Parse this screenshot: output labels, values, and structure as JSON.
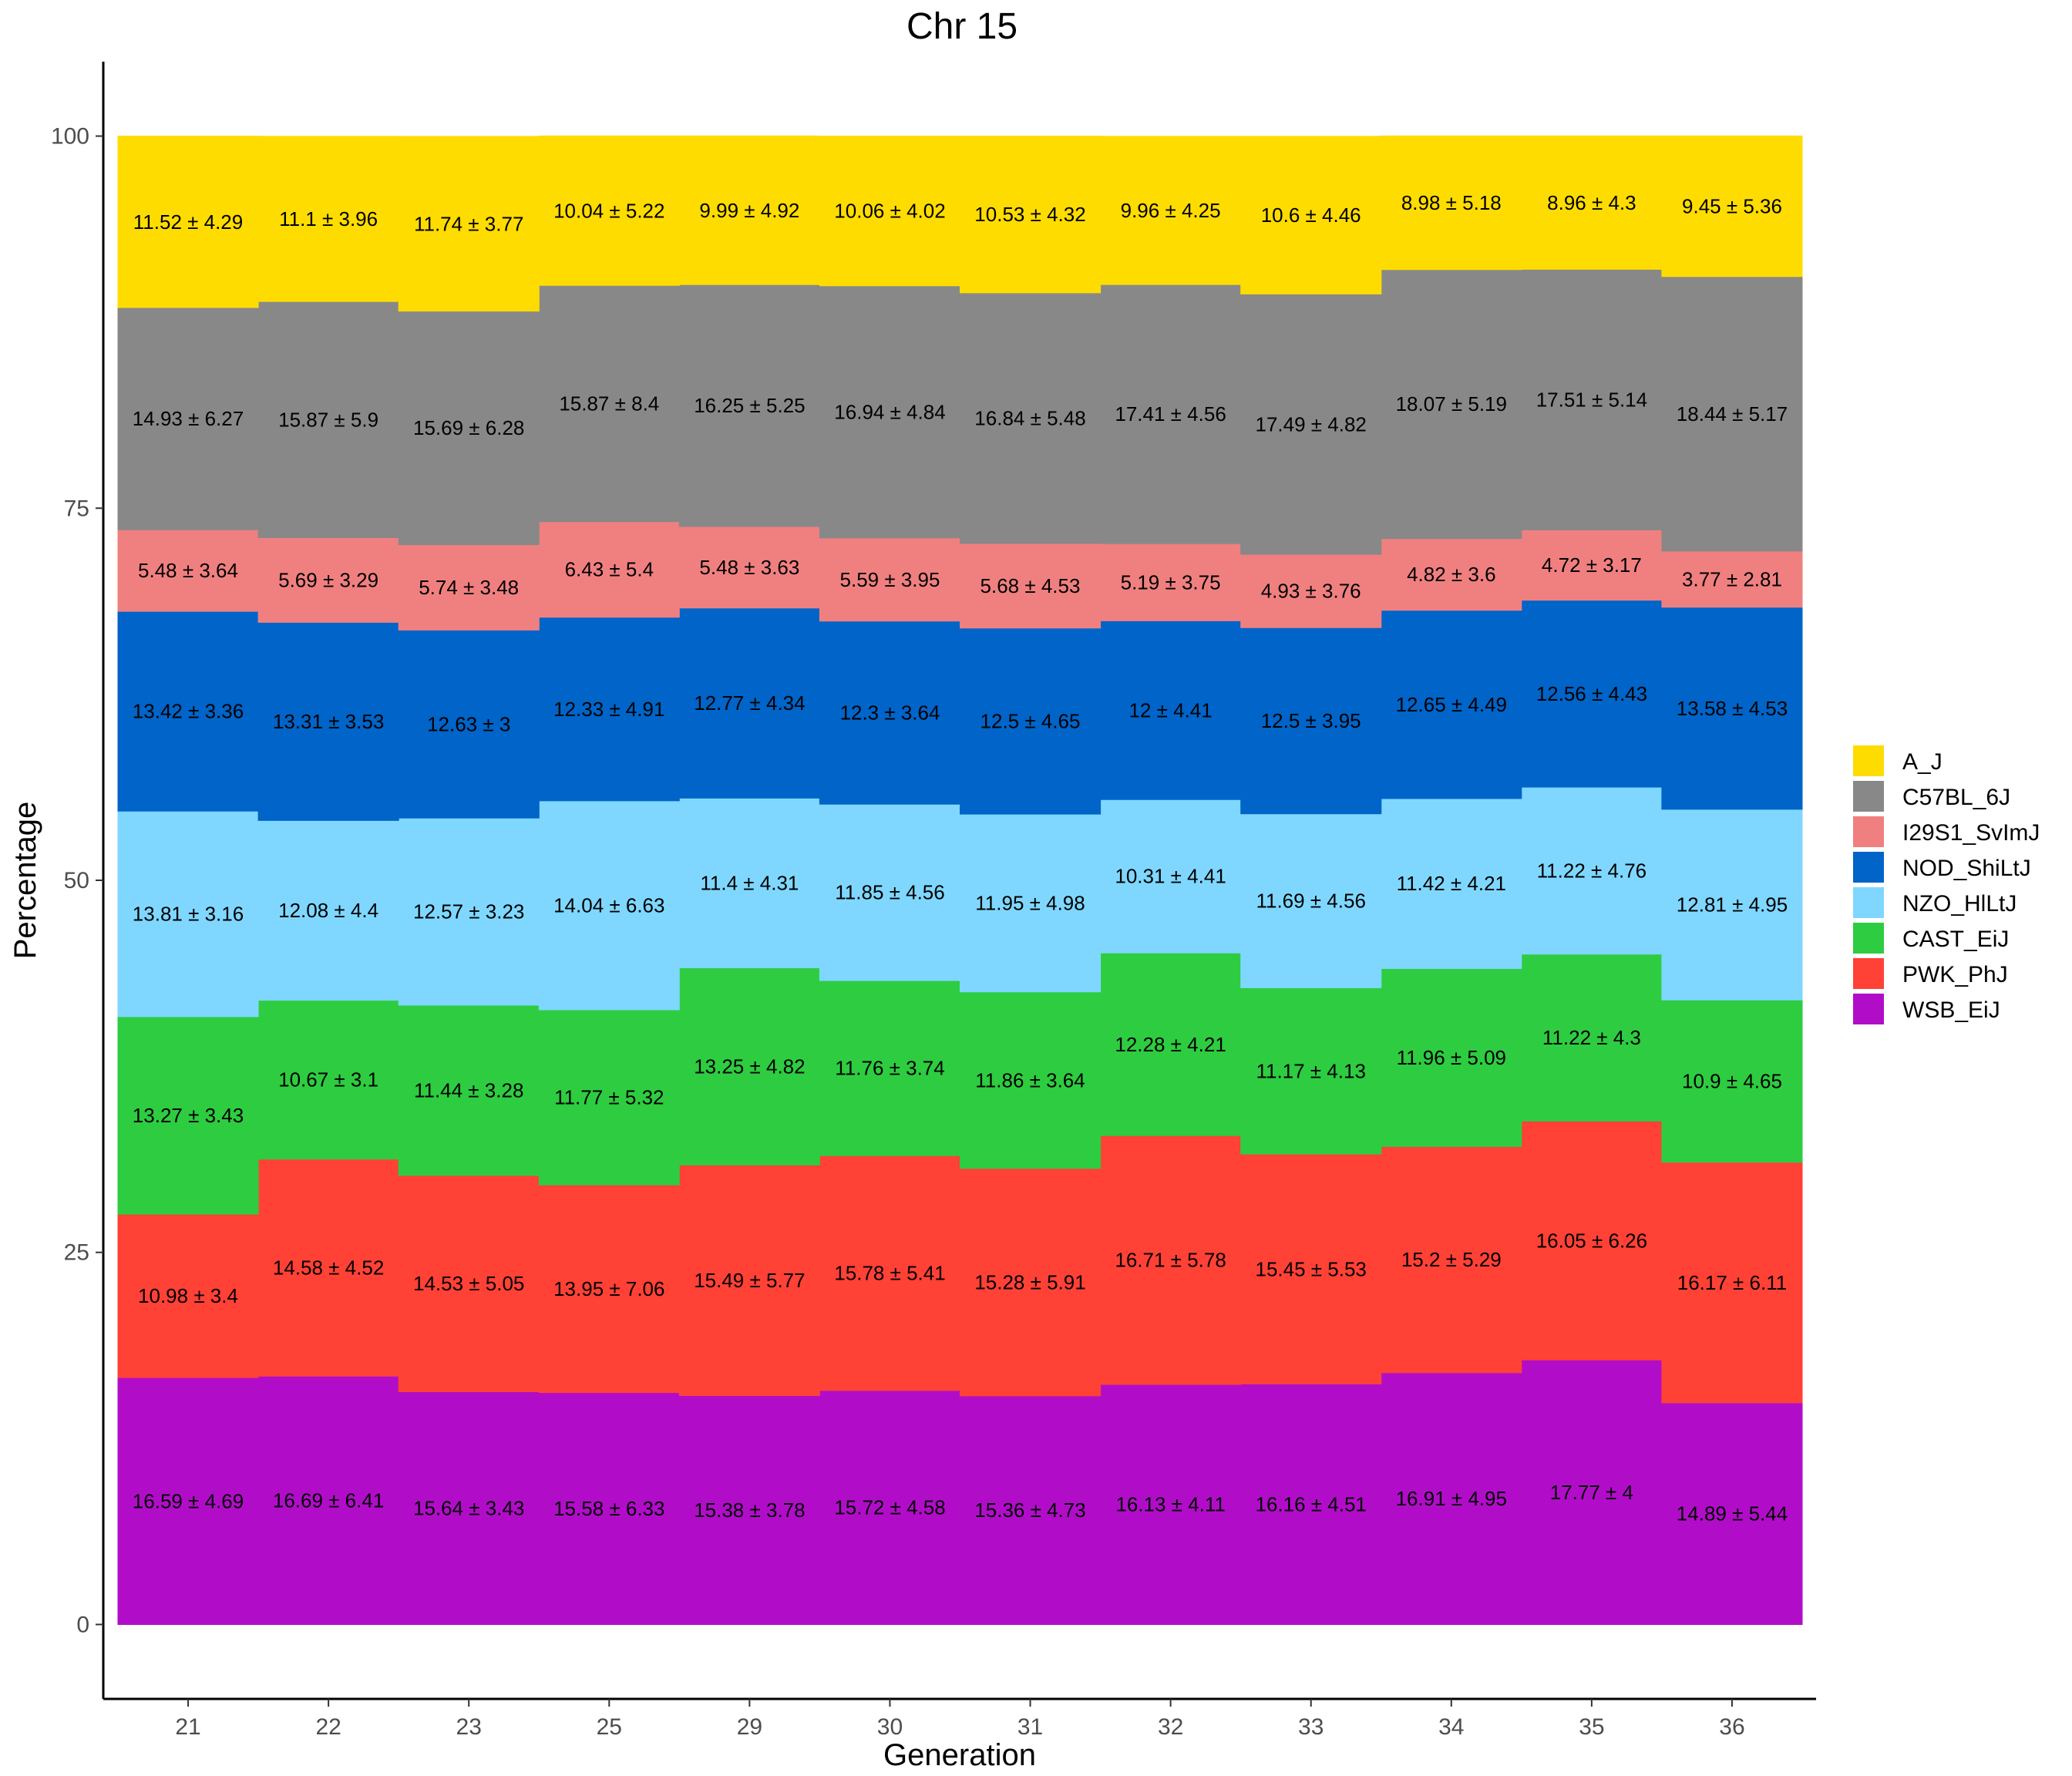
{
  "chart_data": {
    "type": "area",
    "title": "Chr 15",
    "xlabel": "Generation",
    "ylabel": "Percentage",
    "ylim": [
      -5,
      105
    ],
    "yticks": [
      0,
      25,
      50,
      75,
      100
    ],
    "categories": [
      "21",
      "22",
      "23",
      "25",
      "29",
      "30",
      "31",
      "32",
      "33",
      "34",
      "35",
      "36"
    ],
    "stack_order_bottom_to_top": [
      "WSB_EiJ",
      "PWK_PhJ",
      "CAST_EiJ",
      "NZO_HlLtJ",
      "NOD_ShiLtJ",
      "I29S1_SvImJ",
      "C57BL_6J",
      "A_J"
    ],
    "series": [
      {
        "name": "A_J",
        "color": "#FFDC00",
        "values": [
          11.52,
          11.1,
          11.74,
          10.04,
          9.99,
          10.06,
          10.53,
          9.96,
          10.6,
          8.98,
          8.96,
          9.45
        ],
        "sd": [
          4.29,
          3.96,
          3.77,
          5.22,
          4.92,
          4.02,
          4.32,
          4.25,
          4.46,
          5.18,
          4.3,
          5.36
        ],
        "labels": [
          "11.52 ± 4.29",
          "11.1 ± 3.96",
          "11.74 ± 3.77",
          "10.04 ± 5.22",
          "9.99 ± 4.92",
          "10.06 ± 4.02",
          "10.53 ± 4.32",
          "9.96 ± 4.25",
          "10.6 ± 4.46",
          "8.98 ± 5.18",
          "8.96 ± 4.3",
          "9.45 ± 5.36"
        ]
      },
      {
        "name": "C57BL_6J",
        "color": "#888888",
        "values": [
          14.93,
          15.87,
          15.69,
          15.87,
          16.25,
          16.94,
          16.84,
          17.41,
          17.49,
          18.07,
          17.51,
          18.44
        ],
        "sd": [
          6.27,
          5.9,
          6.28,
          8.4,
          5.25,
          4.84,
          5.48,
          4.56,
          4.82,
          5.19,
          5.14,
          5.17
        ],
        "labels": [
          "14.93 ± 6.27",
          "15.87 ± 5.9",
          "15.69 ± 6.28",
          "15.87 ± 8.4",
          "16.25 ± 5.25",
          "16.94 ± 4.84",
          "16.84 ± 5.48",
          "17.41 ± 4.56",
          "17.49 ± 4.82",
          "18.07 ± 5.19",
          "17.51 ± 5.14",
          "18.44 ± 5.17"
        ]
      },
      {
        "name": "I29S1_SvImJ",
        "color": "#F08080",
        "values": [
          5.48,
          5.69,
          5.74,
          6.43,
          5.48,
          5.59,
          5.68,
          5.19,
          4.93,
          4.82,
          4.72,
          3.77
        ],
        "sd": [
          3.64,
          3.29,
          3.48,
          5.4,
          3.63,
          3.95,
          4.53,
          3.75,
          3.76,
          3.6,
          3.17,
          2.81
        ],
        "labels": [
          "5.48 ± 3.64",
          "5.69 ± 3.29",
          "5.74 ± 3.48",
          "6.43 ± 5.4",
          "5.48 ± 3.63",
          "5.59 ± 3.95",
          "5.68 ± 4.53",
          "5.19 ± 3.75",
          "4.93 ± 3.76",
          "4.82 ± 3.6",
          "4.72 ± 3.17",
          "3.77 ± 2.81"
        ]
      },
      {
        "name": "NOD_ShiLtJ",
        "color": "#0064C8",
        "values": [
          13.42,
          13.31,
          12.63,
          12.33,
          12.77,
          12.3,
          12.5,
          12,
          12.5,
          12.65,
          12.56,
          13.58
        ],
        "sd": [
          3.36,
          3.53,
          3,
          4.91,
          4.34,
          3.64,
          4.65,
          4.41,
          3.95,
          4.49,
          4.43,
          4.53
        ],
        "labels": [
          "13.42 ± 3.36",
          "13.31 ± 3.53",
          "12.63 ± 3",
          "12.33 ± 4.91",
          "12.77 ± 4.34",
          "12.3 ± 3.64",
          "12.5 ± 4.65",
          "12 ± 4.41",
          "12.5 ± 3.95",
          "12.65 ± 4.49",
          "12.56 ± 4.43",
          "13.58 ± 4.53"
        ]
      },
      {
        "name": "NZO_HlLtJ",
        "color": "#7FD7FF",
        "values": [
          13.81,
          12.08,
          12.57,
          14.04,
          11.4,
          11.85,
          11.95,
          10.31,
          11.69,
          11.42,
          11.22,
          12.81
        ],
        "sd": [
          3.16,
          4.4,
          3.23,
          6.63,
          4.31,
          4.56,
          4.98,
          4.41,
          4.56,
          4.21,
          4.76,
          4.95
        ],
        "labels": [
          "13.81 ± 3.16",
          "12.08 ± 4.4",
          "12.57 ± 3.23",
          "14.04 ± 6.63",
          "11.4 ± 4.31",
          "11.85 ± 4.56",
          "11.95 ± 4.98",
          "10.31 ± 4.41",
          "11.69 ± 4.56",
          "11.42 ± 4.21",
          "11.22 ± 4.76",
          "12.81 ± 4.95"
        ]
      },
      {
        "name": "CAST_EiJ",
        "color": "#2ECC40",
        "values": [
          13.27,
          10.67,
          11.44,
          11.77,
          13.25,
          11.76,
          11.86,
          12.28,
          11.17,
          11.96,
          11.22,
          10.9
        ],
        "sd": [
          3.43,
          3.1,
          3.28,
          5.32,
          4.82,
          3.74,
          3.64,
          4.21,
          4.13,
          5.09,
          4.3,
          4.65
        ],
        "labels": [
          "13.27 ± 3.43",
          "10.67 ± 3.1",
          "11.44 ± 3.28",
          "11.77 ± 5.32",
          "13.25 ± 4.82",
          "11.76 ± 3.74",
          "11.86 ± 3.64",
          "12.28 ± 4.21",
          "11.17 ± 4.13",
          "11.96 ± 5.09",
          "11.22 ± 4.3",
          "10.9 ± 4.65"
        ]
      },
      {
        "name": "PWK_PhJ",
        "color": "#FF4136",
        "values": [
          10.98,
          14.58,
          14.53,
          13.95,
          15.49,
          15.78,
          15.28,
          16.71,
          15.45,
          15.2,
          16.05,
          16.17
        ],
        "sd": [
          3.4,
          4.52,
          5.05,
          7.06,
          5.77,
          5.41,
          5.91,
          5.78,
          5.53,
          5.29,
          6.26,
          6.11
        ],
        "labels": [
          "10.98 ± 3.4",
          "14.58 ± 4.52",
          "14.53 ± 5.05",
          "13.95 ± 7.06",
          "15.49 ± 5.77",
          "15.78 ± 5.41",
          "15.28 ± 5.91",
          "16.71 ± 5.78",
          "15.45 ± 5.53",
          "15.2 ± 5.29",
          "16.05 ± 6.26",
          "16.17 ± 6.11"
        ]
      },
      {
        "name": "WSB_EiJ",
        "color": "#B10DC9",
        "values": [
          16.59,
          16.69,
          15.64,
          15.58,
          15.38,
          15.72,
          15.36,
          16.13,
          16.16,
          16.91,
          17.77,
          14.89
        ],
        "sd": [
          4.69,
          6.41,
          3.43,
          6.33,
          3.78,
          4.58,
          4.73,
          4.11,
          4.51,
          4.95,
          4,
          5.44
        ],
        "labels": [
          "16.59 ± 4.69",
          "16.69 ± 6.41",
          "15.64 ± 3.43",
          "15.58 ± 6.33",
          "15.38 ± 3.78",
          "15.72 ± 4.58",
          "15.36 ± 4.73",
          "16.13 ± 4.11",
          "16.16 ± 4.51",
          "16.91 ± 4.95",
          "17.77 ± 4",
          "14.89 ± 5.44"
        ]
      }
    ],
    "legend": {
      "position": "right",
      "items": [
        "A_J",
        "C57BL_6J",
        "I29S1_SvImJ",
        "NOD_ShiLtJ",
        "NZO_HlLtJ",
        "CAST_EiJ",
        "PWK_PhJ",
        "WSB_EiJ"
      ]
    },
    "grid": false
  }
}
